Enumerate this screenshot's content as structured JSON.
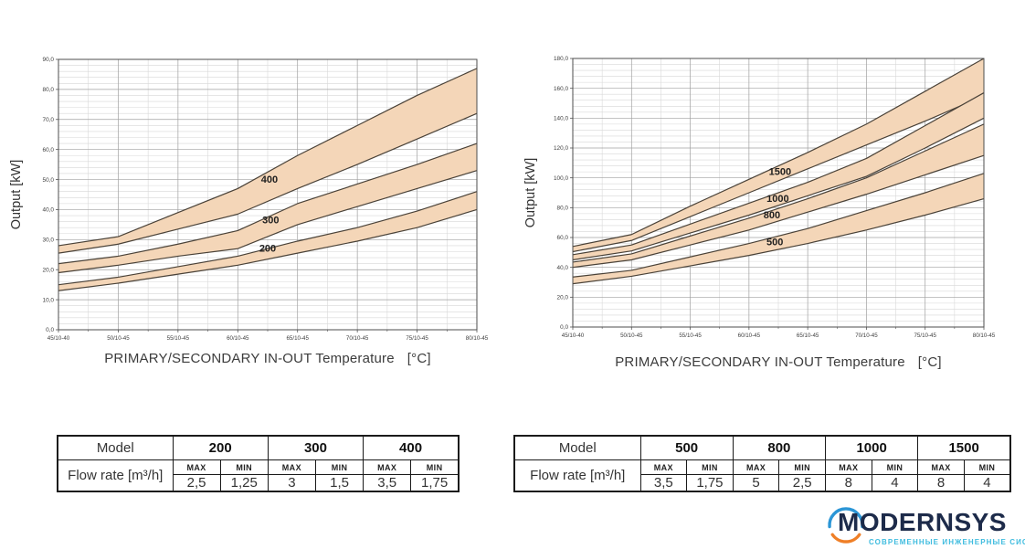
{
  "colors": {
    "band_fill": "#f4d6b8",
    "band_stroke": "#4a4238",
    "grid_major": "#a0a0a0",
    "grid_minor": "#d8d8d8",
    "axis": "#555555",
    "tick_text": "#3d3d3d",
    "series_label": "#1f1f1f",
    "plot_border": "#4d4d4d"
  },
  "chart_data": [
    {
      "type": "area",
      "title": "",
      "xlabel": "PRIMARY/SECONDARY IN-OUT Temperature",
      "xlabel_unit": "[°C]",
      "ylabel": "Output [kW]",
      "categories": [
        "45/10-40",
        "50/10-45",
        "55/10-45",
        "60/10-45",
        "65/10-45",
        "70/10-45",
        "75/10-45",
        "80/10-45"
      ],
      "ylim": [
        0,
        90
      ],
      "ytick_step": 10,
      "yminor_step": 2,
      "grid": true,
      "legend": "labels-on-bands",
      "series": [
        {
          "name": "400",
          "upper": [
            28,
            31,
            39,
            47,
            58,
            68,
            78,
            87
          ],
          "lower": [
            25.5,
            28.5,
            33.5,
            38.5,
            47,
            55,
            63.5,
            72
          ],
          "label_x": 3.53,
          "label_y": 50
        },
        {
          "name": "300",
          "upper": [
            22,
            24.5,
            28.5,
            33,
            42,
            48.5,
            55,
            62
          ],
          "lower": [
            19,
            21.5,
            24.5,
            27,
            35,
            41,
            47,
            53
          ],
          "label_x": 3.55,
          "label_y": 36.5
        },
        {
          "name": "200",
          "upper": [
            15,
            17.5,
            21,
            24.5,
            29.5,
            34,
            39.5,
            46
          ],
          "lower": [
            13,
            15.5,
            18.5,
            21.5,
            25.5,
            29.5,
            34,
            40
          ],
          "label_x": 3.5,
          "label_y": 27
        }
      ]
    },
    {
      "type": "area",
      "title": "",
      "xlabel": "PRIMARY/SECONDARY IN-OUT Temperature",
      "xlabel_unit": "[°C]",
      "ylabel": "Output [kW]",
      "categories": [
        "45/10-40",
        "50/10-45",
        "55/10-45",
        "60/10-45",
        "65/10-45",
        "70/10-45",
        "75/10-45",
        "80/10-45"
      ],
      "ylim": [
        0,
        180
      ],
      "ytick_step": 20,
      "yminor_step": 4,
      "grid": true,
      "legend": "labels-on-bands",
      "series": [
        {
          "name": "1500",
          "upper": [
            54,
            62,
            81,
            99,
            117,
            136,
            158,
            180
          ],
          "lower": [
            50.5,
            58,
            74,
            90,
            106,
            122,
            138,
            155
          ],
          "label_x": 3.53,
          "label_y": 104
        },
        {
          "name": "1000",
          "upper": [
            48.5,
            55,
            69,
            83,
            97,
            113,
            135,
            157
          ],
          "lower": [
            45,
            51,
            63,
            75,
            88,
            101,
            120,
            140
          ],
          "label_x": 3.49,
          "label_y": 86
        },
        {
          "name": "800",
          "upper": [
            43.5,
            49,
            61,
            73,
            86,
            100,
            118,
            136
          ],
          "lower": [
            40,
            45,
            55,
            65,
            77,
            89,
            102,
            115
          ],
          "label_x": 3.39,
          "label_y": 75
        },
        {
          "name": "500",
          "upper": [
            33.5,
            38,
            47,
            56,
            66,
            78,
            90,
            103
          ],
          "lower": [
            29,
            34,
            41,
            48,
            56,
            65,
            75,
            86
          ],
          "label_x": 3.44,
          "label_y": 57
        }
      ]
    }
  ],
  "tables": [
    {
      "model_header": "Model",
      "row_header": "Flow rate [m³/h]",
      "col_headers": [
        "MAX",
        "MIN"
      ],
      "models": [
        {
          "name": "200",
          "max": "2,5",
          "min": "1,25"
        },
        {
          "name": "300",
          "max": "3",
          "min": "1,5"
        },
        {
          "name": "400",
          "max": "3,5",
          "min": "1,75"
        }
      ]
    },
    {
      "model_header": "Model",
      "row_header": "Flow rate [m³/h]",
      "col_headers": [
        "MAX",
        "MIN"
      ],
      "models": [
        {
          "name": "500",
          "max": "3,5",
          "min": "1,75"
        },
        {
          "name": "800",
          "max": "5",
          "min": "2,5"
        },
        {
          "name": "1000",
          "max": "8",
          "min": "4"
        },
        {
          "name": "1500",
          "max": "8",
          "min": "4"
        }
      ]
    }
  ],
  "logo": {
    "brand": "MODERNSYS",
    "tagline": "СОВРЕМЕННЫЕ ИНЖЕНЕРНЫЕ СИСТЕМЫ",
    "colors": {
      "navy": "#1d2b4a",
      "arc_blue": "#2b96d6",
      "arc_orange": "#ef7f27",
      "tagline_blue": "#3fbcdf"
    }
  }
}
